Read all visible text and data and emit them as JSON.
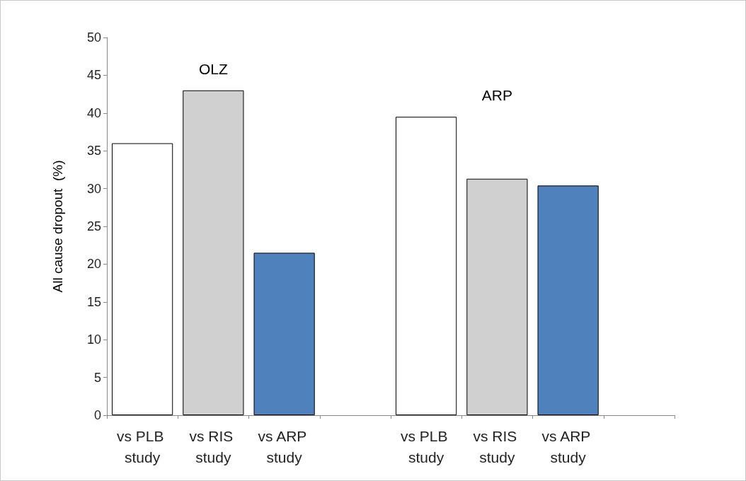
{
  "chart_data": {
    "type": "bar",
    "ylabel": "All cause dropout  (%)",
    "categories": [
      "vs PLB study",
      "vs RIS study",
      "vs ARP study",
      null,
      "vs PLB study",
      "vs RIS study",
      "vs ARP study",
      null
    ],
    "values": [
      36,
      43,
      21.5,
      null,
      39.5,
      31.3,
      30.4,
      null
    ],
    "colors": [
      "#ffffff",
      "#d0d0d0",
      "#4f81bd",
      null,
      "#ffffff",
      "#d0d0d0",
      "#4f81bd",
      null
    ],
    "annotations": [
      "OLZ",
      "ARP"
    ],
    "ylim": [
      0,
      50
    ],
    "yticks": [
      0,
      5,
      10,
      15,
      20,
      25,
      30,
      35,
      40,
      45,
      50
    ],
    "grid": false
  }
}
